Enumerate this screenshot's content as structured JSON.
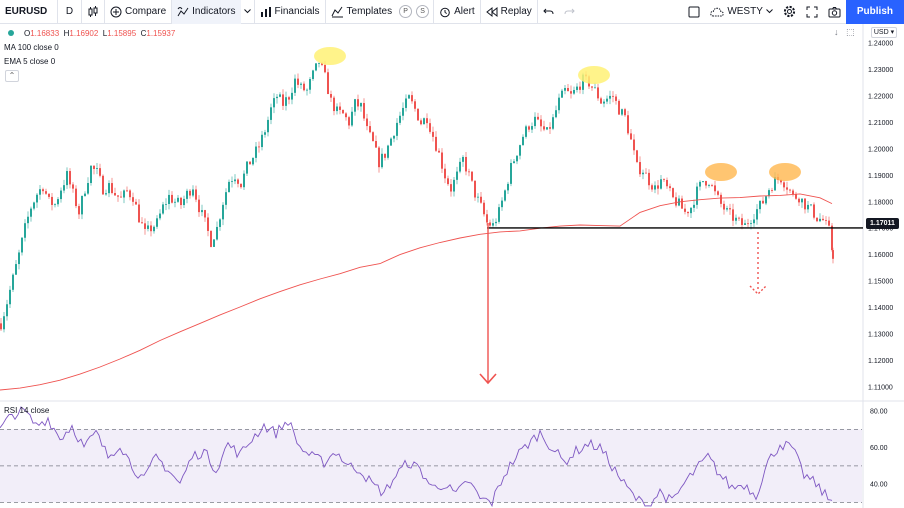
{
  "toolbar": {
    "symbol": "EURUSD",
    "interval": "D",
    "compare": "Compare",
    "indicators": "Indicators",
    "financials": "Financials",
    "templates": "Templates",
    "p_badge": "P",
    "s_badge": "S",
    "alert": "Alert",
    "replay": "Replay",
    "layout_name": "WESTY",
    "publish": "Publish"
  },
  "legend": {
    "o_label": "O",
    "o_value": "1.16833",
    "h_label": "H",
    "h_value": "1.16902",
    "l_label": "L",
    "l_value": "1.15895",
    "c_label": "C",
    "c_value": "1.15937",
    "ma": "MA 100 close 0",
    "ema": "EMA 5 close 0",
    "rsi": "RSI 14 close"
  },
  "currency": "USD",
  "last_price_label": "1.17011",
  "colors": {
    "up": "#26a69a",
    "down": "#ef5350",
    "ma": "#ef5350",
    "rsi": "#7e57c2",
    "accent": "#2962ff"
  },
  "chart_data": [
    {
      "type": "line",
      "series": [
        {
          "name": "MA 100 close 0",
          "x": [
            0,
            20,
            40,
            60,
            80,
            100,
            120,
            140,
            160,
            180,
            200,
            220,
            240,
            260,
            280,
            300,
            320,
            340,
            360,
            380,
            400,
            420,
            440,
            460,
            480,
            500,
            520,
            540,
            560,
            580,
            600,
            620,
            640,
            660,
            680,
            700,
            720,
            740,
            760,
            780,
            800,
            820,
            832
          ],
          "y": [
            1.1088,
            1.1095,
            1.1108,
            1.1125,
            1.1148,
            1.1175,
            1.1205,
            1.1238,
            1.1275,
            1.1308,
            1.134,
            1.1372,
            1.1402,
            1.1433,
            1.146,
            1.1486,
            1.1508,
            1.1528,
            1.1552,
            1.1566,
            1.16,
            1.1626,
            1.1646,
            1.1663,
            1.1677,
            1.1686,
            1.169,
            1.17,
            1.1708,
            1.1712,
            1.171,
            1.1708,
            1.176,
            1.1785,
            1.18,
            1.1808,
            1.1814,
            1.1816,
            1.1822,
            1.1824,
            1.183,
            1.1815,
            1.1793
          ]
        },
        {
          "name": "EUR/USD daily close (approx.)",
          "x": [
            0,
            6,
            12,
            18,
            24,
            30,
            36,
            42,
            48,
            54,
            60,
            66,
            72,
            78,
            84,
            90,
            96,
            102,
            108,
            114,
            120,
            126,
            132,
            138,
            144,
            150,
            156,
            162,
            168,
            174,
            180,
            186,
            192,
            198,
            204,
            210,
            216,
            222,
            228,
            234,
            240,
            246,
            252,
            258,
            264,
            270,
            276,
            282,
            288,
            294,
            300,
            306,
            312,
            318,
            324,
            330,
            336,
            342,
            348,
            354,
            360,
            366,
            372,
            378,
            384,
            390,
            396,
            402,
            408,
            414,
            420,
            426,
            432,
            438,
            444,
            450,
            456,
            462,
            468,
            474,
            480,
            486,
            492,
            498,
            504,
            510,
            516,
            522,
            528,
            534,
            540,
            546,
            552,
            558,
            564,
            570,
            576,
            582,
            588,
            594,
            600,
            606,
            612,
            618,
            624,
            630,
            636,
            642,
            648,
            654,
            660,
            666,
            672,
            678,
            684,
            690,
            696,
            702,
            708,
            714,
            720,
            726,
            732,
            738,
            744,
            750,
            756,
            762,
            768,
            774,
            780,
            786,
            792,
            798,
            804,
            810,
            816,
            822,
            828,
            832
          ],
          "y": [
            1.134,
            1.142,
            1.151,
            1.16,
            1.17,
            1.178,
            1.183,
            1.186,
            1.18,
            1.179,
            1.185,
            1.19,
            1.183,
            1.176,
            1.185,
            1.193,
            1.191,
            1.185,
            1.186,
            1.183,
            1.181,
            1.184,
            1.182,
            1.174,
            1.168,
            1.17,
            1.172,
            1.178,
            1.182,
            1.18,
            1.179,
            1.183,
            1.186,
            1.178,
            1.172,
            1.165,
            1.17,
            1.18,
            1.188,
            1.19,
            1.187,
            1.193,
            1.197,
            1.201,
            1.207,
            1.215,
            1.22,
            1.217,
            1.22,
            1.226,
            1.223,
            1.222,
            1.228,
            1.233,
            1.227,
            1.218,
            1.214,
            1.213,
            1.21,
            1.217,
            1.216,
            1.207,
            1.202,
            1.195,
            1.198,
            1.204,
            1.21,
            1.215,
            1.219,
            1.215,
            1.21,
            1.212,
            1.205,
            1.198,
            1.19,
            1.185,
            1.19,
            1.196,
            1.19,
            1.183,
            1.178,
            1.172,
            1.171,
            1.176,
            1.184,
            1.193,
            1.199,
            1.205,
            1.209,
            1.211,
            1.208,
            1.206,
            1.211,
            1.218,
            1.222,
            1.22,
            1.223,
            1.226,
            1.225,
            1.222,
            1.218,
            1.219,
            1.22,
            1.215,
            1.212,
            1.203,
            1.193,
            1.192,
            1.188,
            1.185,
            1.188,
            1.185,
            1.181,
            1.179,
            1.176,
            1.178,
            1.184,
            1.188,
            1.188,
            1.183,
            1.179,
            1.176,
            1.174,
            1.172,
            1.171,
            1.174,
            1.177,
            1.18,
            1.185,
            1.188,
            1.189,
            1.186,
            1.182,
            1.182,
            1.179,
            1.177,
            1.174,
            1.173,
            1.169,
            1.16
          ]
        }
      ],
      "ylim": [
        1.105,
        1.245
      ],
      "y_ticks": [
        "1.24000",
        "1.23000",
        "1.22000",
        "1.21000",
        "1.20000",
        "1.19000",
        "1.18000",
        "1.17000",
        "1.16000",
        "1.15000",
        "1.14000",
        "1.13000",
        "1.12000",
        "1.11000"
      ],
      "y_tick_values": [
        1.24,
        1.23,
        1.22,
        1.21,
        1.2,
        1.19,
        1.18,
        1.17,
        1.16,
        1.15,
        1.14,
        1.13,
        1.12,
        1.11
      ],
      "last_price": 1.17011,
      "annotations": [
        "highlighted peaks (head/shoulders)",
        "horizontal neckline at 1.17011",
        "downward arrows"
      ]
    },
    {
      "type": "line",
      "series": [
        {
          "name": "RSI 14 close",
          "x": [
            0,
            12,
            24,
            36,
            48,
            60,
            72,
            84,
            96,
            108,
            120,
            132,
            144,
            156,
            168,
            180,
            192,
            204,
            216,
            228,
            240,
            252,
            264,
            276,
            288,
            300,
            312,
            324,
            336,
            348,
            360,
            372,
            384,
            396,
            408,
            420,
            432,
            444,
            456,
            468,
            480,
            492,
            504,
            516,
            528,
            540,
            552,
            564,
            576,
            588,
            600,
            612,
            624,
            636,
            648,
            660,
            672,
            684,
            696,
            708,
            720,
            732,
            744,
            756,
            768,
            780,
            792,
            804,
            816,
            828,
            832
          ],
          "y": [
            70,
            78,
            80,
            72,
            76,
            65,
            72,
            60,
            68,
            55,
            62,
            50,
            42,
            55,
            48,
            40,
            55,
            58,
            48,
            62,
            56,
            65,
            72,
            68,
            75,
            60,
            55,
            52,
            58,
            50,
            48,
            40,
            35,
            45,
            52,
            48,
            38,
            40,
            34,
            42,
            32,
            30,
            45,
            55,
            62,
            68,
            60,
            52,
            58,
            62,
            60,
            50,
            40,
            32,
            28,
            36,
            30,
            40,
            48,
            55,
            45,
            38,
            40,
            34,
            52,
            62,
            60,
            45,
            40,
            32,
            31
          ]
        }
      ],
      "ylim": [
        28,
        85
      ],
      "y_ticks": [
        "80.00",
        "60.00",
        "40.00"
      ],
      "y_tick_values": [
        80,
        60,
        40
      ],
      "bands": [
        70,
        50,
        30
      ]
    }
  ]
}
